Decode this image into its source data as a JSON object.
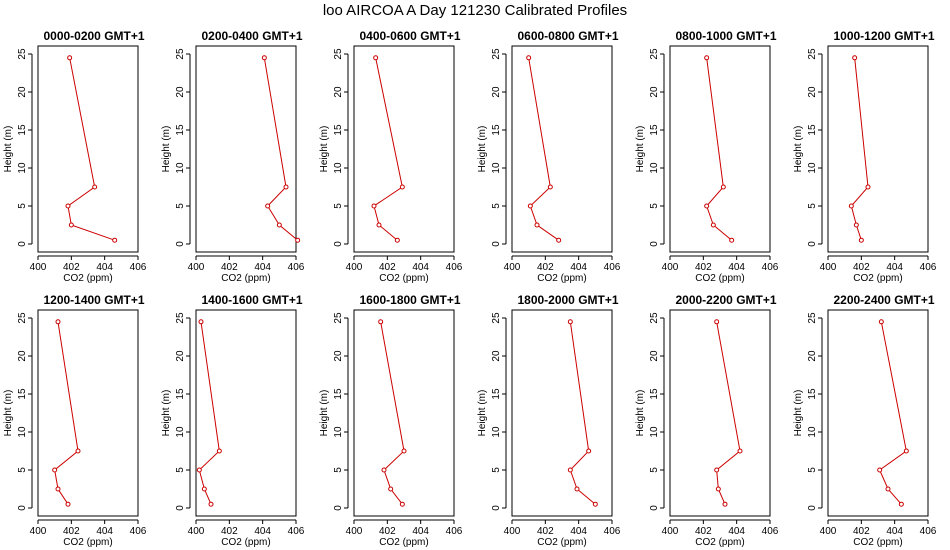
{
  "figure": {
    "title": "loo AIRCOA A  Day 121230  Calibrated Profiles"
  },
  "chart_data": {
    "type": "line",
    "xlabel": "CO2 (ppm)",
    "ylabel": "Height (m)",
    "xlim": [
      400,
      406
    ],
    "ylim": [
      0,
      25
    ],
    "xticks": [
      400,
      402,
      404,
      406
    ],
    "yticks": [
      0,
      5,
      10,
      15,
      20,
      25
    ],
    "color": "#cc0000",
    "grid": false,
    "heights": [
      0.5,
      2.5,
      5,
      7.5,
      24.5
    ],
    "panels": [
      {
        "title": "0000-0200 GMT+1",
        "co2": [
          404.6,
          402.0,
          401.8,
          403.4,
          401.9
        ]
      },
      {
        "title": "0200-0400 GMT+1",
        "co2": [
          406.1,
          405.0,
          404.3,
          405.4,
          404.1
        ]
      },
      {
        "title": "0400-0600 GMT+1",
        "co2": [
          402.6,
          401.5,
          401.2,
          402.9,
          401.3
        ]
      },
      {
        "title": "0600-0800 GMT+1",
        "co2": [
          402.8,
          401.5,
          401.1,
          402.3,
          401.0
        ]
      },
      {
        "title": "0800-1000 GMT+1",
        "co2": [
          403.7,
          402.6,
          402.2,
          403.2,
          402.2
        ]
      },
      {
        "title": "1000-1200 GMT+1",
        "co2": [
          402.0,
          401.7,
          401.4,
          402.4,
          401.6
        ]
      },
      {
        "title": "1200-1400 GMT+1",
        "co2": [
          401.8,
          401.2,
          401.0,
          402.4,
          401.2
        ]
      },
      {
        "title": "1400-1600 GMT+1",
        "co2": [
          400.9,
          400.5,
          400.2,
          401.4,
          400.3
        ]
      },
      {
        "title": "1600-1800 GMT+1",
        "co2": [
          402.9,
          402.2,
          401.8,
          403.0,
          401.6
        ]
      },
      {
        "title": "1800-2000 GMT+1",
        "co2": [
          405.0,
          403.9,
          403.5,
          404.6,
          403.5
        ]
      },
      {
        "title": "2000-2200 GMT+1",
        "co2": [
          403.3,
          402.9,
          402.8,
          404.2,
          402.8
        ]
      },
      {
        "title": "2200-2400 GMT+1",
        "co2": [
          404.4,
          403.6,
          403.1,
          404.7,
          403.2
        ]
      }
    ]
  }
}
